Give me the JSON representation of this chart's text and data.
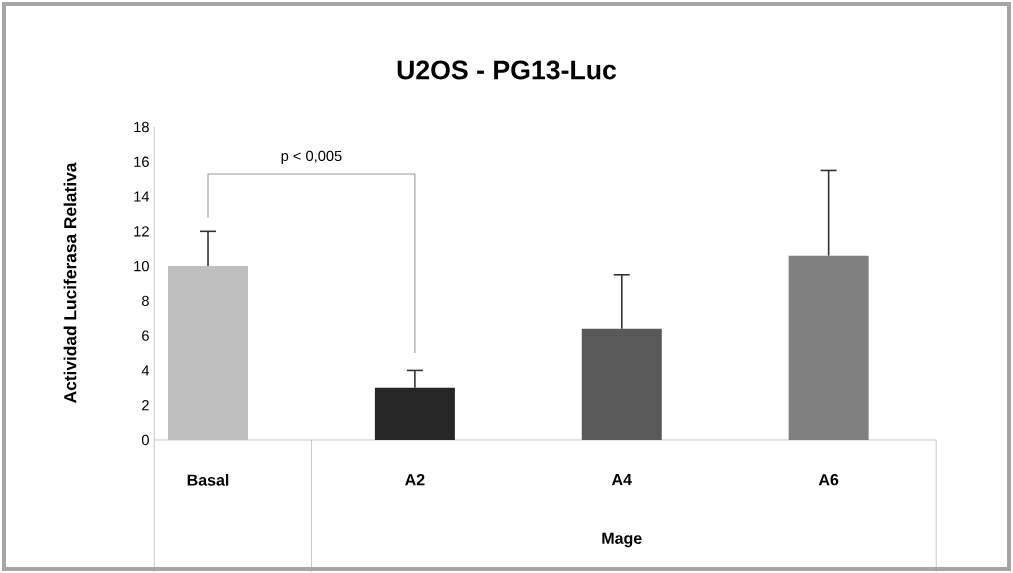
{
  "chart_data": {
    "type": "bar",
    "title": "U2OS - PG13-Luc",
    "ylabel": "Actividad Luciferasa Relativa",
    "categories": [
      "Basal",
      "A2",
      "A4",
      "A6"
    ],
    "values": [
      10,
      3,
      6.4,
      10.6
    ],
    "colors": [
      "#bfbfbf",
      "#262626",
      "#595959",
      "#808080"
    ],
    "errors": [
      [
        10,
        12
      ],
      [
        3,
        4
      ],
      [
        6.4,
        9.5
      ],
      [
        10.6,
        15.5
      ]
    ],
    "ylim": [
      0,
      18
    ],
    "yticks": [
      0,
      2,
      4,
      6,
      8,
      10,
      12,
      14,
      16,
      18
    ],
    "annotations": [
      "p < 0,005",
      "Mage"
    ]
  }
}
